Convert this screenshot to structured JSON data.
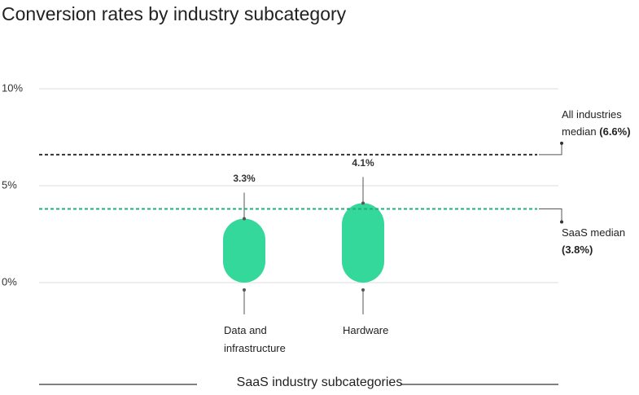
{
  "chart_data": {
    "type": "bar",
    "title": "Conversion rates by industry subcategory",
    "x_label": "SaaS industry subcategories",
    "categories": [
      "Data and infrastructure",
      "Hardware"
    ],
    "values": [
      3.3,
      4.1
    ],
    "value_labels": [
      "3.3%",
      "4.1%"
    ],
    "color": "#34d89a",
    "ylim": [
      0,
      10
    ],
    "yticks": [
      {
        "value": 0,
        "label": "0%"
      },
      {
        "value": 5,
        "label": "5%"
      },
      {
        "value": 10,
        "label": "10%"
      }
    ],
    "grid": true,
    "reference_lines": [
      {
        "name": "All industries median",
        "label": "(6.6%)",
        "value": 6.6,
        "color": "#333333"
      },
      {
        "name": "SaaS median",
        "label": "(3.8%)",
        "value": 3.8,
        "color": "#1fae7e"
      }
    ]
  }
}
